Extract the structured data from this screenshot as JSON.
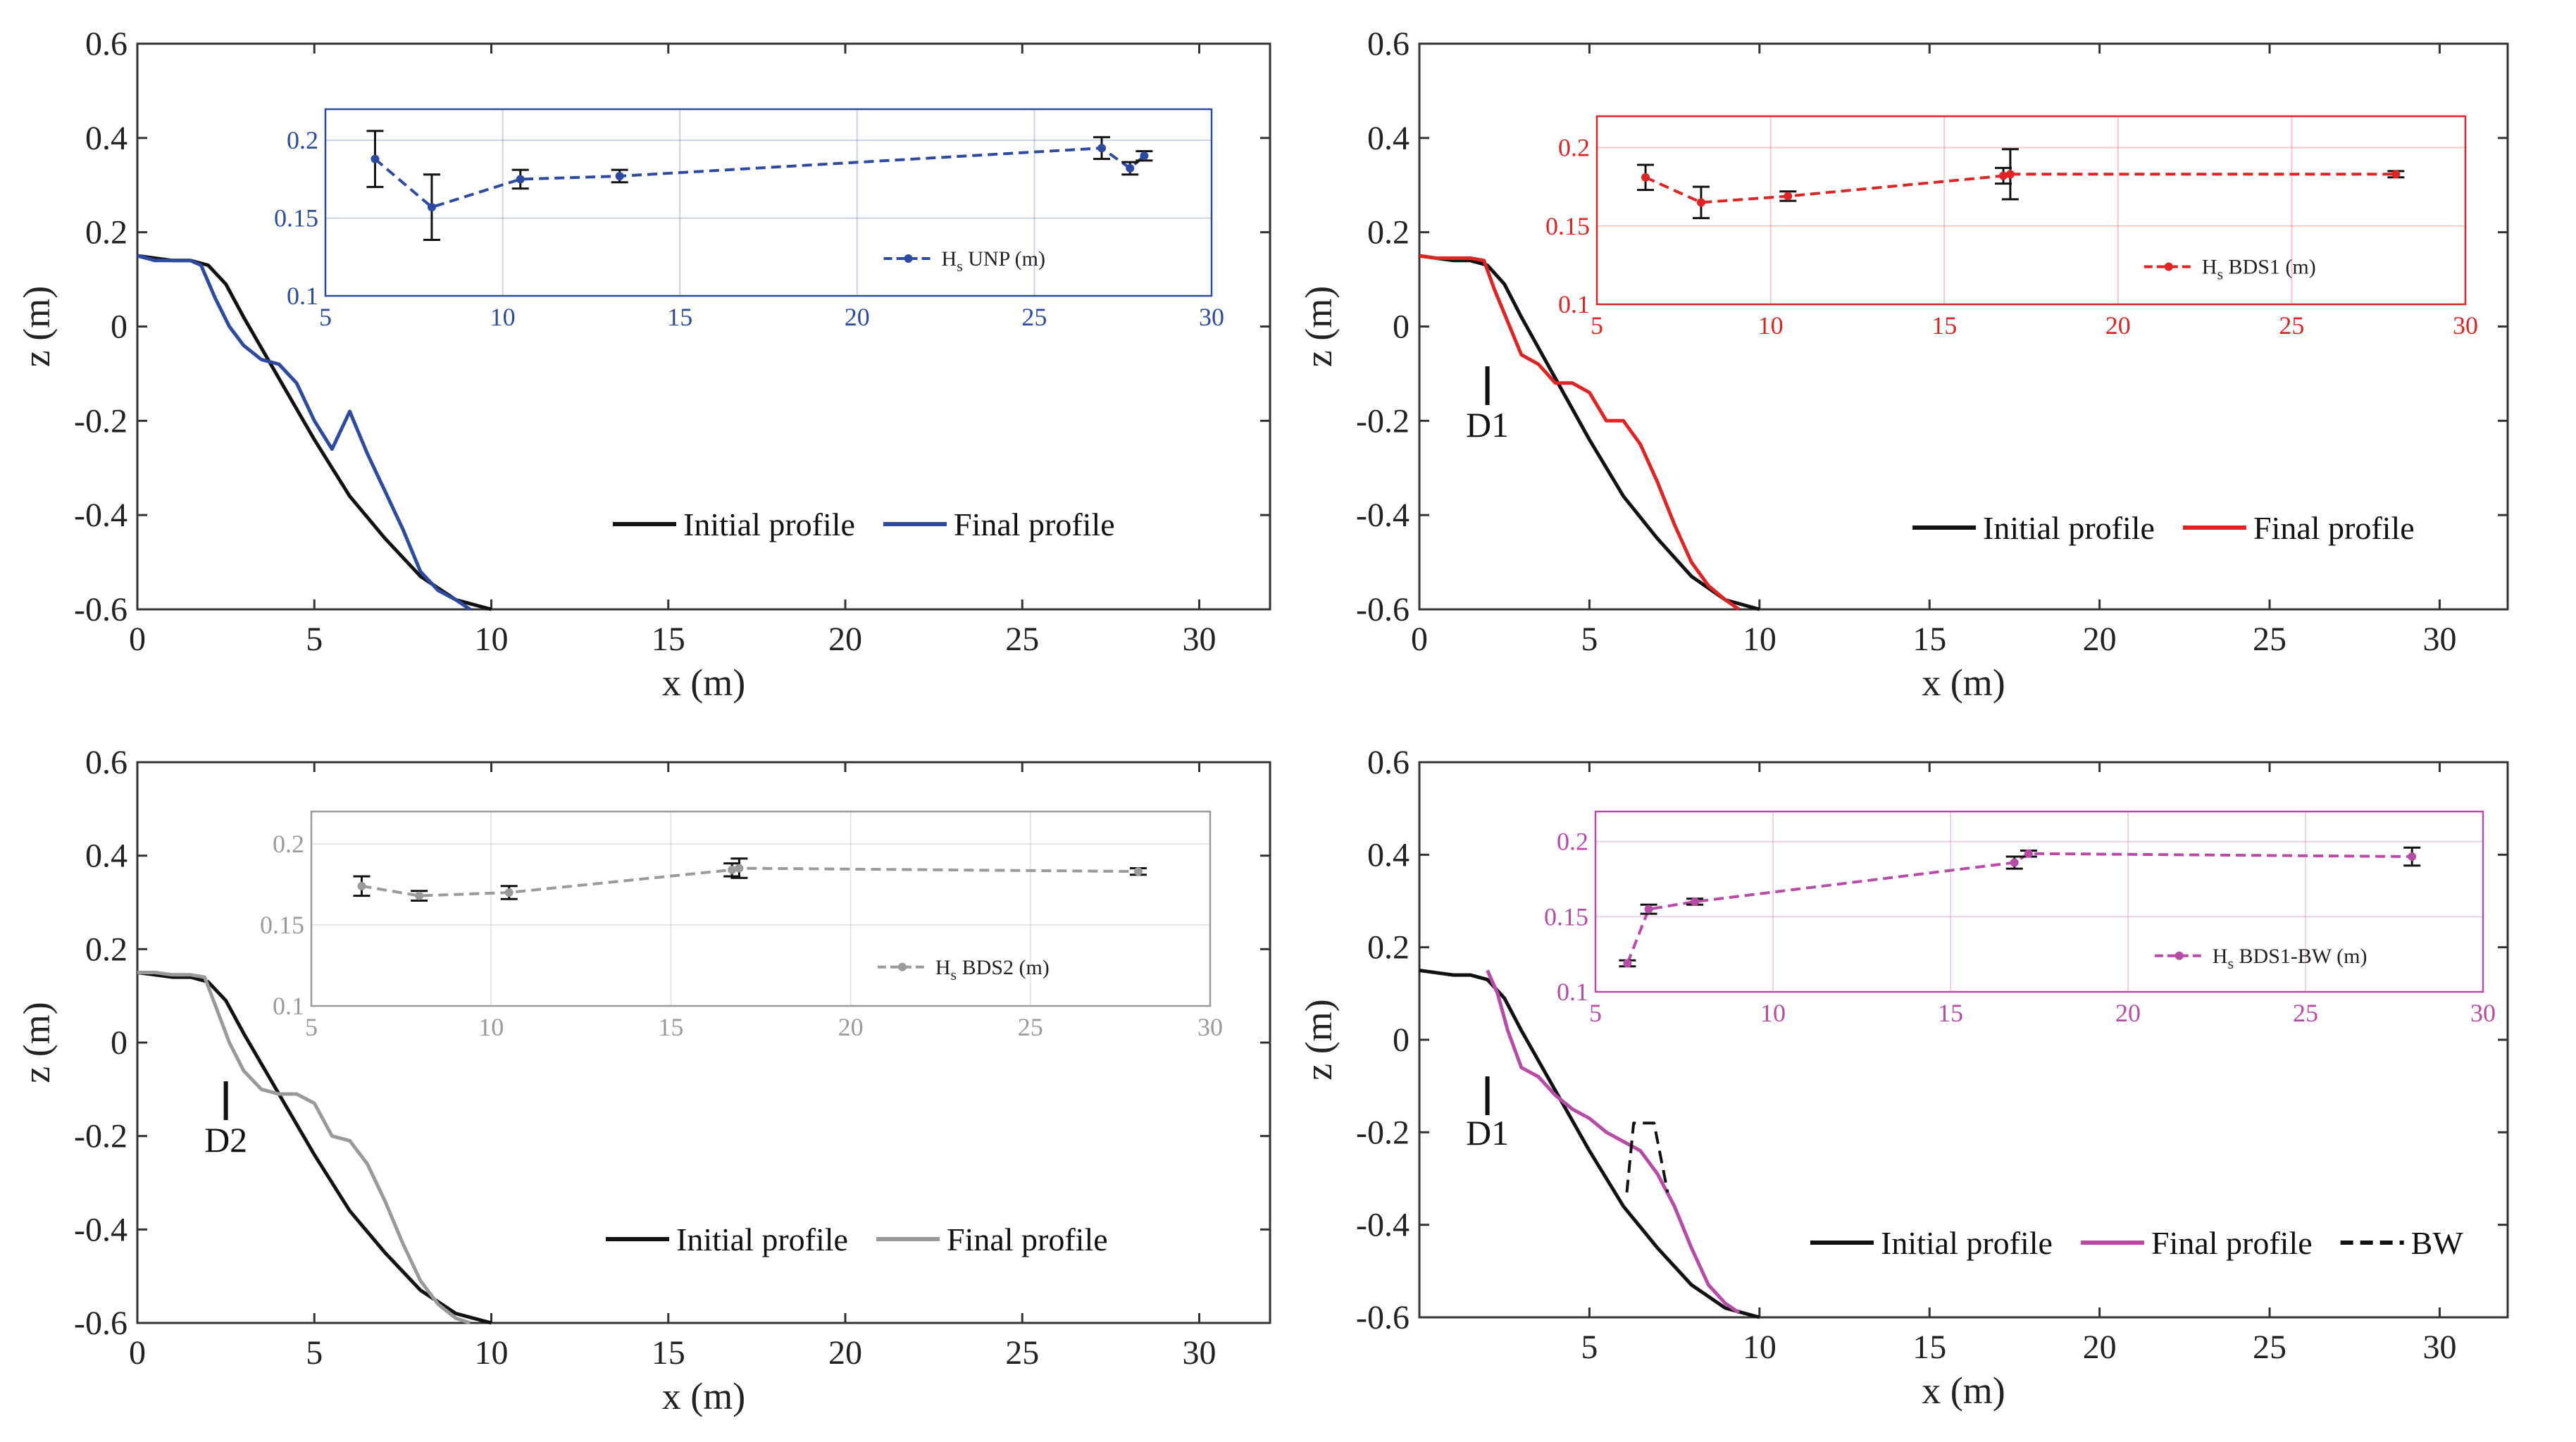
{
  "chart_data": [
    {
      "type": "line",
      "panel": "top-left",
      "xlabel": "x (m)",
      "ylabel": "z (m)",
      "xlim": [
        0,
        32
      ],
      "ylim": [
        -0.6,
        0.6
      ],
      "xticks": [
        0,
        5,
        10,
        15,
        20,
        25,
        30
      ],
      "yticks": [
        -0.6,
        -0.4,
        -0.2,
        0,
        0.2,
        0.4,
        0.6
      ],
      "series": [
        {
          "name": "Initial profile",
          "color": "#111111",
          "x": [
            0,
            0.5,
            1,
            1.5,
            2,
            2.5,
            3,
            4,
            5,
            6,
            7,
            8,
            9,
            10
          ],
          "y": [
            0.15,
            0.145,
            0.14,
            0.14,
            0.13,
            0.09,
            0.02,
            -0.11,
            -0.24,
            -0.36,
            -0.45,
            -0.53,
            -0.58,
            -0.6
          ]
        },
        {
          "name": "Final profile",
          "color": "#2c4aa0",
          "x": [
            0,
            0.5,
            1,
            1.5,
            1.8,
            2.2,
            2.6,
            3,
            3.5,
            4,
            4.5,
            5,
            5.5,
            6,
            6.5,
            7,
            7.5,
            8,
            8.5,
            9,
            9.4
          ],
          "y": [
            0.15,
            0.14,
            0.14,
            0.14,
            0.13,
            0.06,
            0.0,
            -0.04,
            -0.07,
            -0.08,
            -0.12,
            -0.2,
            -0.26,
            -0.18,
            -0.27,
            -0.35,
            -0.43,
            -0.52,
            -0.56,
            -0.58,
            -0.6
          ]
        }
      ],
      "legend": {
        "location": "bottom-right",
        "entries": [
          "Initial profile",
          "Final profile"
        ]
      },
      "inset": {
        "color": "#2c4aa0",
        "legend": {
          "main": "H",
          "sub": "s",
          "rest": " UNP (m)"
        },
        "xlim": [
          5,
          30
        ],
        "ylim": [
          0.1,
          0.22
        ],
        "xticks": [
          5,
          10,
          15,
          20,
          25,
          30
        ],
        "yticks": [
          0.1,
          0.15,
          0.2
        ],
        "x": [
          6.4,
          8.0,
          10.5,
          13.3,
          26.9,
          27.7,
          28.1
        ],
        "y": [
          0.188,
          0.157,
          0.175,
          0.177,
          0.195,
          0.182,
          0.19
        ],
        "err": [
          0.018,
          0.021,
          0.006,
          0.004,
          0.007,
          0.004,
          0.003
        ]
      }
    },
    {
      "type": "line",
      "panel": "top-right",
      "xlabel": "x (m)",
      "ylabel": "z (m)",
      "xlim": [
        0,
        32
      ],
      "ylim": [
        -0.6,
        0.6
      ],
      "xticks": [
        0,
        5,
        10,
        15,
        20,
        25,
        30
      ],
      "yticks": [
        -0.6,
        -0.4,
        -0.2,
        0,
        0.2,
        0.4,
        0.6
      ],
      "series": [
        {
          "name": "Initial profile",
          "color": "#111111",
          "x": [
            0,
            0.5,
            1,
            1.5,
            2,
            2.5,
            3,
            4,
            5,
            6,
            7,
            8,
            9,
            10
          ],
          "y": [
            0.15,
            0.145,
            0.14,
            0.14,
            0.13,
            0.09,
            0.02,
            -0.11,
            -0.24,
            -0.36,
            -0.45,
            -0.53,
            -0.58,
            -0.6
          ]
        },
        {
          "name": "Final profile",
          "color": "#e02424",
          "x": [
            0,
            0.5,
            1,
            1.5,
            1.9,
            2.2,
            2.6,
            3,
            3.5,
            4,
            4.5,
            5,
            5.5,
            6,
            6.5,
            7,
            7.5,
            8,
            8.5,
            9,
            9.4
          ],
          "y": [
            0.15,
            0.145,
            0.145,
            0.145,
            0.14,
            0.08,
            0.01,
            -0.06,
            -0.08,
            -0.12,
            -0.12,
            -0.14,
            -0.2,
            -0.2,
            -0.25,
            -0.33,
            -0.42,
            -0.5,
            -0.55,
            -0.58,
            -0.6
          ]
        }
      ],
      "legend": {
        "location": "bottom-right",
        "entries": [
          "Initial profile",
          "Final profile"
        ]
      },
      "annotation": {
        "label": "D1",
        "x": 2.0
      },
      "inset": {
        "color": "#e02424",
        "legend": {
          "main": "H",
          "sub": "s",
          "rest": " BDS1 (m)"
        },
        "xlim": [
          5,
          30
        ],
        "ylim": [
          0.1,
          0.22
        ],
        "xticks": [
          5,
          10,
          15,
          20,
          25,
          30
        ],
        "yticks": [
          0.1,
          0.15,
          0.2
        ],
        "x": [
          6.4,
          8.0,
          10.5,
          16.7,
          16.9,
          28.0
        ],
        "y": [
          0.181,
          0.165,
          0.169,
          0.182,
          0.183,
          0.183
        ],
        "err": [
          0.008,
          0.01,
          0.003,
          0.005,
          0.016,
          0.002
        ]
      }
    },
    {
      "type": "line",
      "panel": "bottom-left",
      "xlabel": "x (m)",
      "ylabel": "z (m)",
      "xlim": [
        0,
        32
      ],
      "ylim": [
        -0.6,
        0.6
      ],
      "xticks": [
        0,
        5,
        10,
        15,
        20,
        25,
        30
      ],
      "yticks": [
        -0.6,
        -0.4,
        -0.2,
        0,
        0.2,
        0.4,
        0.6
      ],
      "series": [
        {
          "name": "Initial profile",
          "color": "#111111",
          "x": [
            0,
            0.5,
            1,
            1.5,
            2,
            2.5,
            3,
            4,
            5,
            6,
            7,
            8,
            9,
            10
          ],
          "y": [
            0.15,
            0.145,
            0.14,
            0.14,
            0.13,
            0.09,
            0.02,
            -0.11,
            -0.24,
            -0.36,
            -0.45,
            -0.53,
            -0.58,
            -0.6
          ]
        },
        {
          "name": "Final profile",
          "color": "#999999",
          "x": [
            0,
            0.5,
            1,
            1.5,
            1.9,
            2.2,
            2.6,
            3,
            3.5,
            4,
            4.5,
            5,
            5.5,
            6,
            6.5,
            7,
            7.5,
            8,
            8.5,
            9,
            9.4
          ],
          "y": [
            0.15,
            0.15,
            0.145,
            0.145,
            0.14,
            0.08,
            0.0,
            -0.06,
            -0.1,
            -0.11,
            -0.11,
            -0.13,
            -0.2,
            -0.21,
            -0.26,
            -0.34,
            -0.43,
            -0.51,
            -0.56,
            -0.59,
            -0.6
          ]
        }
      ],
      "legend": {
        "location": "bottom-right",
        "entries": [
          "Initial profile",
          "Final profile"
        ]
      },
      "annotation": {
        "label": "D2",
        "x": 2.5
      },
      "inset": {
        "color": "#9a9a9a",
        "legend": {
          "main": "H",
          "sub": "s",
          "rest": " BDS2 (m)"
        },
        "xlim": [
          5,
          30
        ],
        "ylim": [
          0.1,
          0.22
        ],
        "xticks": [
          5,
          10,
          15,
          20,
          25,
          30
        ],
        "yticks": [
          0.1,
          0.15,
          0.2
        ],
        "x": [
          6.4,
          8.0,
          10.5,
          16.7,
          16.9,
          28.0
        ],
        "y": [
          0.174,
          0.168,
          0.17,
          0.184,
          0.185,
          0.183
        ],
        "err": [
          0.006,
          0.003,
          0.004,
          0.004,
          0.006,
          0.002
        ]
      }
    },
    {
      "type": "line",
      "panel": "bottom-right",
      "xlabel": "x (m)",
      "ylabel": "z (m)",
      "xlim": [
        0,
        32
      ],
      "ylim": [
        -0.6,
        0.6
      ],
      "xticks": [
        5,
        10,
        15,
        20,
        25,
        30
      ],
      "yticks": [
        -0.6,
        -0.4,
        -0.2,
        0,
        0.2,
        0.4,
        0.6
      ],
      "series": [
        {
          "name": "Initial profile",
          "color": "#111111",
          "x": [
            0,
            0.5,
            1,
            1.5,
            2,
            2.5,
            3,
            4,
            5,
            6,
            7,
            8,
            9,
            10
          ],
          "y": [
            0.15,
            0.145,
            0.14,
            0.14,
            0.13,
            0.09,
            0.02,
            -0.11,
            -0.24,
            -0.36,
            -0.45,
            -0.53,
            -0.58,
            -0.6
          ]
        },
        {
          "name": "Final profile",
          "color": "#b84aa8",
          "x": [
            2,
            2.3,
            2.6,
            3,
            3.5,
            4,
            4.5,
            5,
            5.5,
            6,
            6.5,
            7,
            7.5,
            8,
            8.5,
            9,
            9.4
          ],
          "y": [
            0.15,
            0.1,
            0.02,
            -0.06,
            -0.08,
            -0.12,
            -0.15,
            -0.17,
            -0.2,
            -0.22,
            -0.24,
            -0.29,
            -0.36,
            -0.45,
            -0.53,
            -0.57,
            -0.59
          ]
        },
        {
          "name": "BW",
          "color": "#111111",
          "dash": true,
          "x": [
            6.1,
            6.3,
            6.9,
            7.3
          ],
          "y": [
            -0.33,
            -0.18,
            -0.18,
            -0.33
          ]
        }
      ],
      "legend": {
        "location": "bottom-right",
        "entries": [
          "Initial profile",
          "Final profile",
          "BW"
        ]
      },
      "annotation": {
        "label": "D1",
        "x": 2.0
      },
      "inset": {
        "color": "#b84aa8",
        "legend": {
          "main": "H",
          "sub": "s",
          "rest": " BDS1-BW (m)"
        },
        "xlim": [
          5,
          30
        ],
        "ylim": [
          0.1,
          0.22
        ],
        "xticks": [
          5,
          10,
          15,
          20,
          25,
          30
        ],
        "yticks": [
          0.1,
          0.15,
          0.2
        ],
        "x": [
          5.9,
          6.5,
          7.8,
          16.8,
          17.2,
          28.0
        ],
        "y": [
          0.119,
          0.155,
          0.16,
          0.186,
          0.192,
          0.19
        ],
        "err": [
          0.002,
          0.003,
          0.002,
          0.004,
          0.002,
          0.006
        ]
      }
    }
  ]
}
